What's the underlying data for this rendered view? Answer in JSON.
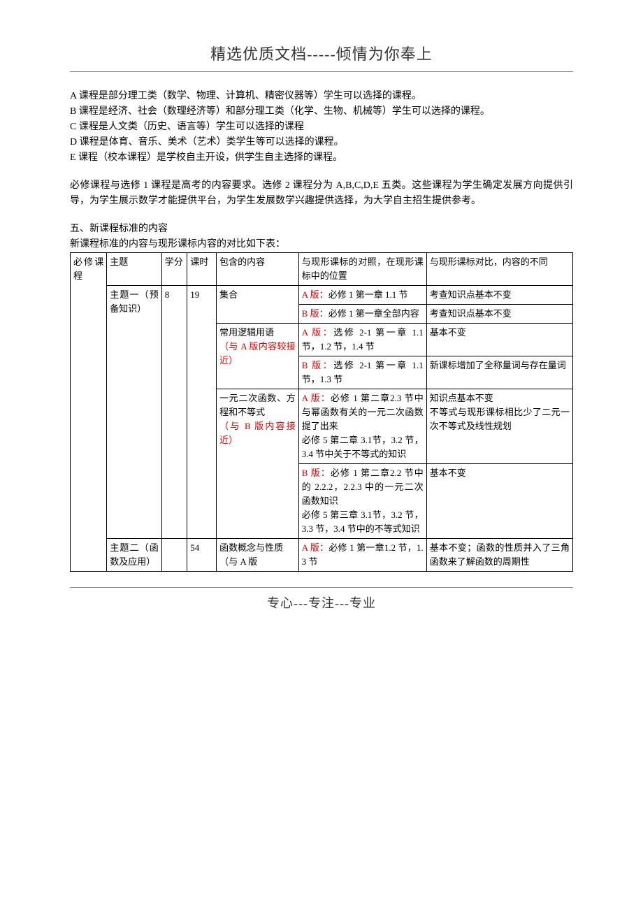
{
  "header": "精选优质文档-----倾情为你奉上",
  "footer": "专心---专注---专业",
  "intro": {
    "lineA": "A 课程是部分理工类（数学、物理、计算机、精密仪器等）学生可以选择的课程。",
    "lineB": "B 课程是经济、社会（数理经济等）和部分理工类（化学、生物、机械等）学生可以选择的课程。",
    "lineC": "C 课程是人文类（历史、语言等）学生可以选择的课程",
    "lineD": "D 课程是体育、音乐、美术（艺术）类学生等可以选择的课程。",
    "lineE": "E 课程（校本课程）是学校自主开设，供学生自主选择的课程。"
  },
  "summary": "必修课程与选修 1 课程是高考的内容要求。选修 2 课程分为 A,B,C,D,E 五类。这些课程为学生确定发展方向提供引导，为学生展示数学才能提供平台，为学生发展数学兴趣提供选择，为大学自主招生提供参考。",
  "section5_title": "五、新课程标准的内容",
  "section5_intro": "新课程标准的内容与现形课标内容的对比如下表：",
  "table": {
    "head": {
      "c0": "必修课程",
      "c1": "主题",
      "c2": "学分",
      "c3": "课时",
      "c4": "包含的内容",
      "c5": "与现形课标的对照，在现形课标中的位置",
      "c6": "与现形课标对比，内容的不同"
    },
    "t1": {
      "topic": "主题一（预备知识）",
      "credit": "8",
      "hours": "19",
      "r1": {
        "content": "集合",
        "compareA_prefix": "A 版：",
        "compareA_body": "必修 1 第一章 1.1 节",
        "diff": "考查知识点基本不变"
      },
      "r2": {
        "compareB_prefix": "B 版：",
        "compareB_body": "必修 1 第一章全部内容",
        "diff": "考查知识点基本不变"
      },
      "r3": {
        "content_line1": "常用逻辑用语",
        "content_line2": "（与 A 版内容较接近）",
        "compareA_prefix": "A 版：",
        "compareA_body": "选修 2-1 第一章 1.1 节，1.2 节，1.4 节",
        "diff": "基本不变"
      },
      "r4": {
        "compareB_prefix": "B 版：",
        "compareB_body": "选修 2-1 第一章 1.1 节，1.3 节",
        "diff": "新课标增加了全称量词与存在量词"
      },
      "r5": {
        "content_line1": "一元二次函数、方程和不等式",
        "content_line2": "（与 B 版内容接近）",
        "compareA_prefix": "A 版：",
        "compareA_body": "必修 1 第二章2.3 节中与幂函数有关的一元二次函数提了出来",
        "compareA_body2": "必修 5 第二章 3.1节，3.2 节，3.4 节中关于不等式的知识",
        "diff": "知识点基本不变\n不等式与现形课标相比少了二元一次不等式及线性规划"
      },
      "r6": {
        "compareB_prefix": "B 版：",
        "compareB_body": "必修 1 第二章2.2 节中的 2.2.2，2.2.3 中的一元二次函数知识",
        "compareB_body2": "必修 5 第三章 3.1节，3.2 节，3.3 节，3.4 节中的不等式知识",
        "diff": "基本不变"
      }
    },
    "t2": {
      "topic": "主题二（函数及应用）",
      "credit": "",
      "hours": "54",
      "r1": {
        "content_line1": "函数概念与性质",
        "content_line2": "（与 A 版",
        "compareA_prefix": "A 版：",
        "compareA_body": "必修 1 第一章1.2 节，1.3 节",
        "diff": "基本不变；函数的性质并入了三角函数来了解函数的周期性"
      }
    }
  }
}
